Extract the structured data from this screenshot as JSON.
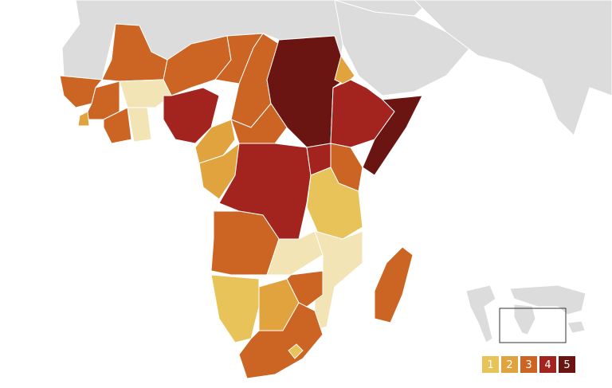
{
  "legend": [
    {
      "value": 1,
      "color": "#e8c35a"
    },
    {
      "value": 2,
      "color": "#e1a33e"
    },
    {
      "value": 3,
      "color": "#cc6423"
    },
    {
      "value": 4,
      "color": "#a3241f"
    },
    {
      "value": 5,
      "color": "#6b1513"
    }
  ],
  "empty_color": "#f3e4b6",
  "regions": [
    3,
    3,
    3,
    3,
    5,
    4,
    5,
    2,
    3,
    3,
    2,
    null,
    3,
    null,
    4,
    2,
    3,
    2,
    4,
    4,
    3,
    1,
    3,
    null,
    null,
    1,
    2,
    3,
    3,
    1,
    3
  ]
}
